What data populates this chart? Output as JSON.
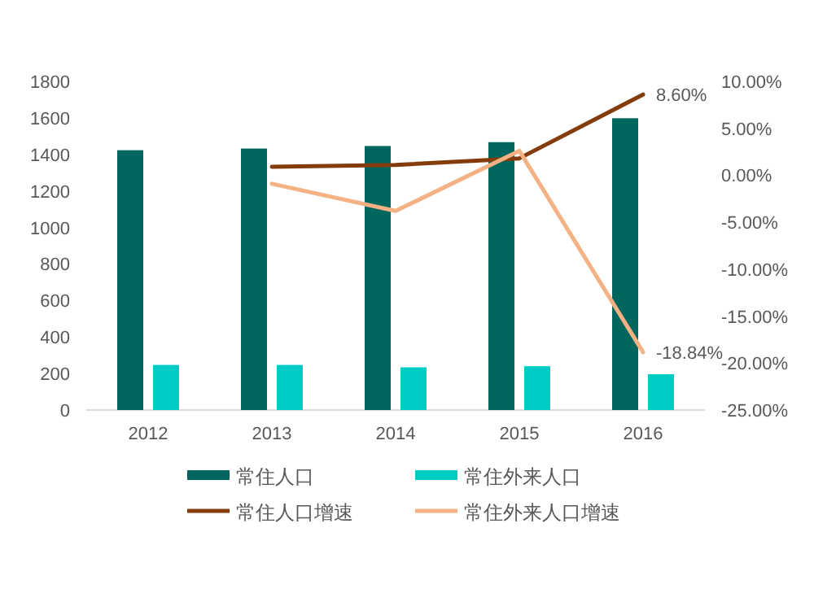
{
  "chart_data": {
    "type": "bar",
    "categories": [
      "2012",
      "2013",
      "2014",
      "2015",
      "2016"
    ],
    "series": [
      {
        "name": "常住人口",
        "color": "#00665e",
        "values": [
          1423,
          1432,
          1446,
          1467,
          1598
        ]
      },
      {
        "name": "常住外来人口",
        "color": "#00ccc6",
        "values": [
          247,
          247,
          234,
          240,
          196
        ]
      },
      {
        "name": "常住人口增速",
        "type": "line",
        "axis": "y2",
        "color": "#843c0c",
        "values": [
          null,
          0.9,
          1.1,
          1.8,
          8.6
        ],
        "value_labels": [
          null,
          null,
          null,
          null,
          "8.60%"
        ]
      },
      {
        "name": "常住外来人口增速",
        "type": "line",
        "axis": "y2",
        "color": "#f4b183",
        "values": [
          null,
          -0.9,
          -3.8,
          2.6,
          -18.84
        ],
        "value_labels": [
          null,
          null,
          null,
          null,
          "-18.84%"
        ]
      }
    ],
    "ylim": [
      0,
      1800
    ],
    "yticks": [
      0,
      200,
      400,
      600,
      800,
      1000,
      1200,
      1400,
      1600,
      1800
    ],
    "y2lim": [
      -25,
      10
    ],
    "y2ticks": [
      {
        "value": -25,
        "label": "-25.00%"
      },
      {
        "value": -20,
        "label": "-20.00%"
      },
      {
        "value": -15,
        "label": "-15.00%"
      },
      {
        "value": -10,
        "label": "-10.00%"
      },
      {
        "value": -5,
        "label": "-5.00%"
      },
      {
        "value": 0,
        "label": "0.00%"
      },
      {
        "value": 5,
        "label": "5.00%"
      },
      {
        "value": 10,
        "label": "10.00%"
      }
    ],
    "grid": false,
    "legend": "bottom"
  }
}
